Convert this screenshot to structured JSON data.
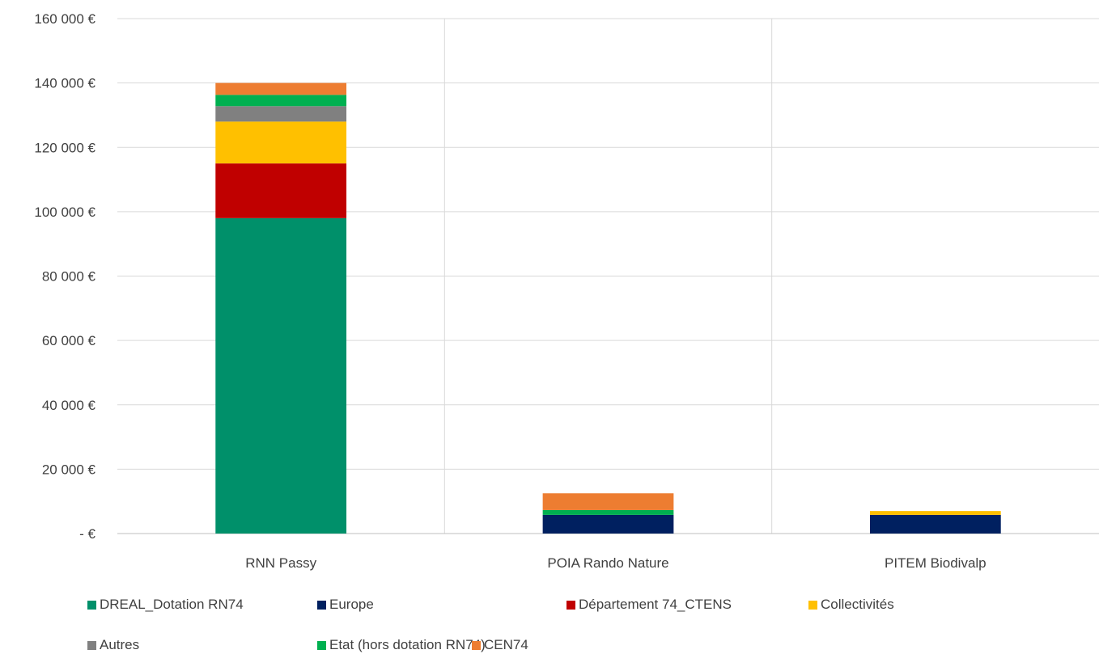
{
  "chart_data": {
    "type": "bar",
    "stacked": true,
    "categories": [
      "RNN Passy",
      "POIA Rando Nature",
      "PITEM Biodivalp"
    ],
    "y_ticks": [
      {
        "value": 0,
        "label": "-  €"
      },
      {
        "value": 20000,
        "label": "20 000 €"
      },
      {
        "value": 40000,
        "label": "40 000 €"
      },
      {
        "value": 60000,
        "label": "60 000 €"
      },
      {
        "value": 80000,
        "label": "80 000 €"
      },
      {
        "value": 100000,
        "label": "100 000 €"
      },
      {
        "value": 120000,
        "label": "120 000 €"
      },
      {
        "value": 140000,
        "label": "140 000 €"
      },
      {
        "value": 160000,
        "label": "160 000 €"
      }
    ],
    "ylim": [
      0,
      160000
    ],
    "grid": true,
    "legend_position": "bottom",
    "series": [
      {
        "name": "DREAL_Dotation RN74",
        "color": "#00906A",
        "values": [
          98000,
          0,
          0
        ]
      },
      {
        "name": "Europe",
        "color": "#002060",
        "values": [
          0,
          5800,
          5800
        ]
      },
      {
        "name": "Département 74_CTENS",
        "color": "#C00000",
        "values": [
          17000,
          0,
          0
        ]
      },
      {
        "name": "Collectivités",
        "color": "#FFC000",
        "values": [
          13000,
          0,
          1200
        ]
      },
      {
        "name": "Autres",
        "color": "#808080",
        "values": [
          4800,
          0,
          0
        ]
      },
      {
        "name": "Etat (hors dotation RN74)",
        "color": "#00B050",
        "values": [
          3500,
          1500,
          0
        ]
      },
      {
        "name": "CEN74",
        "color": "#ED7D31",
        "values": [
          3700,
          5200,
          0
        ]
      }
    ]
  }
}
